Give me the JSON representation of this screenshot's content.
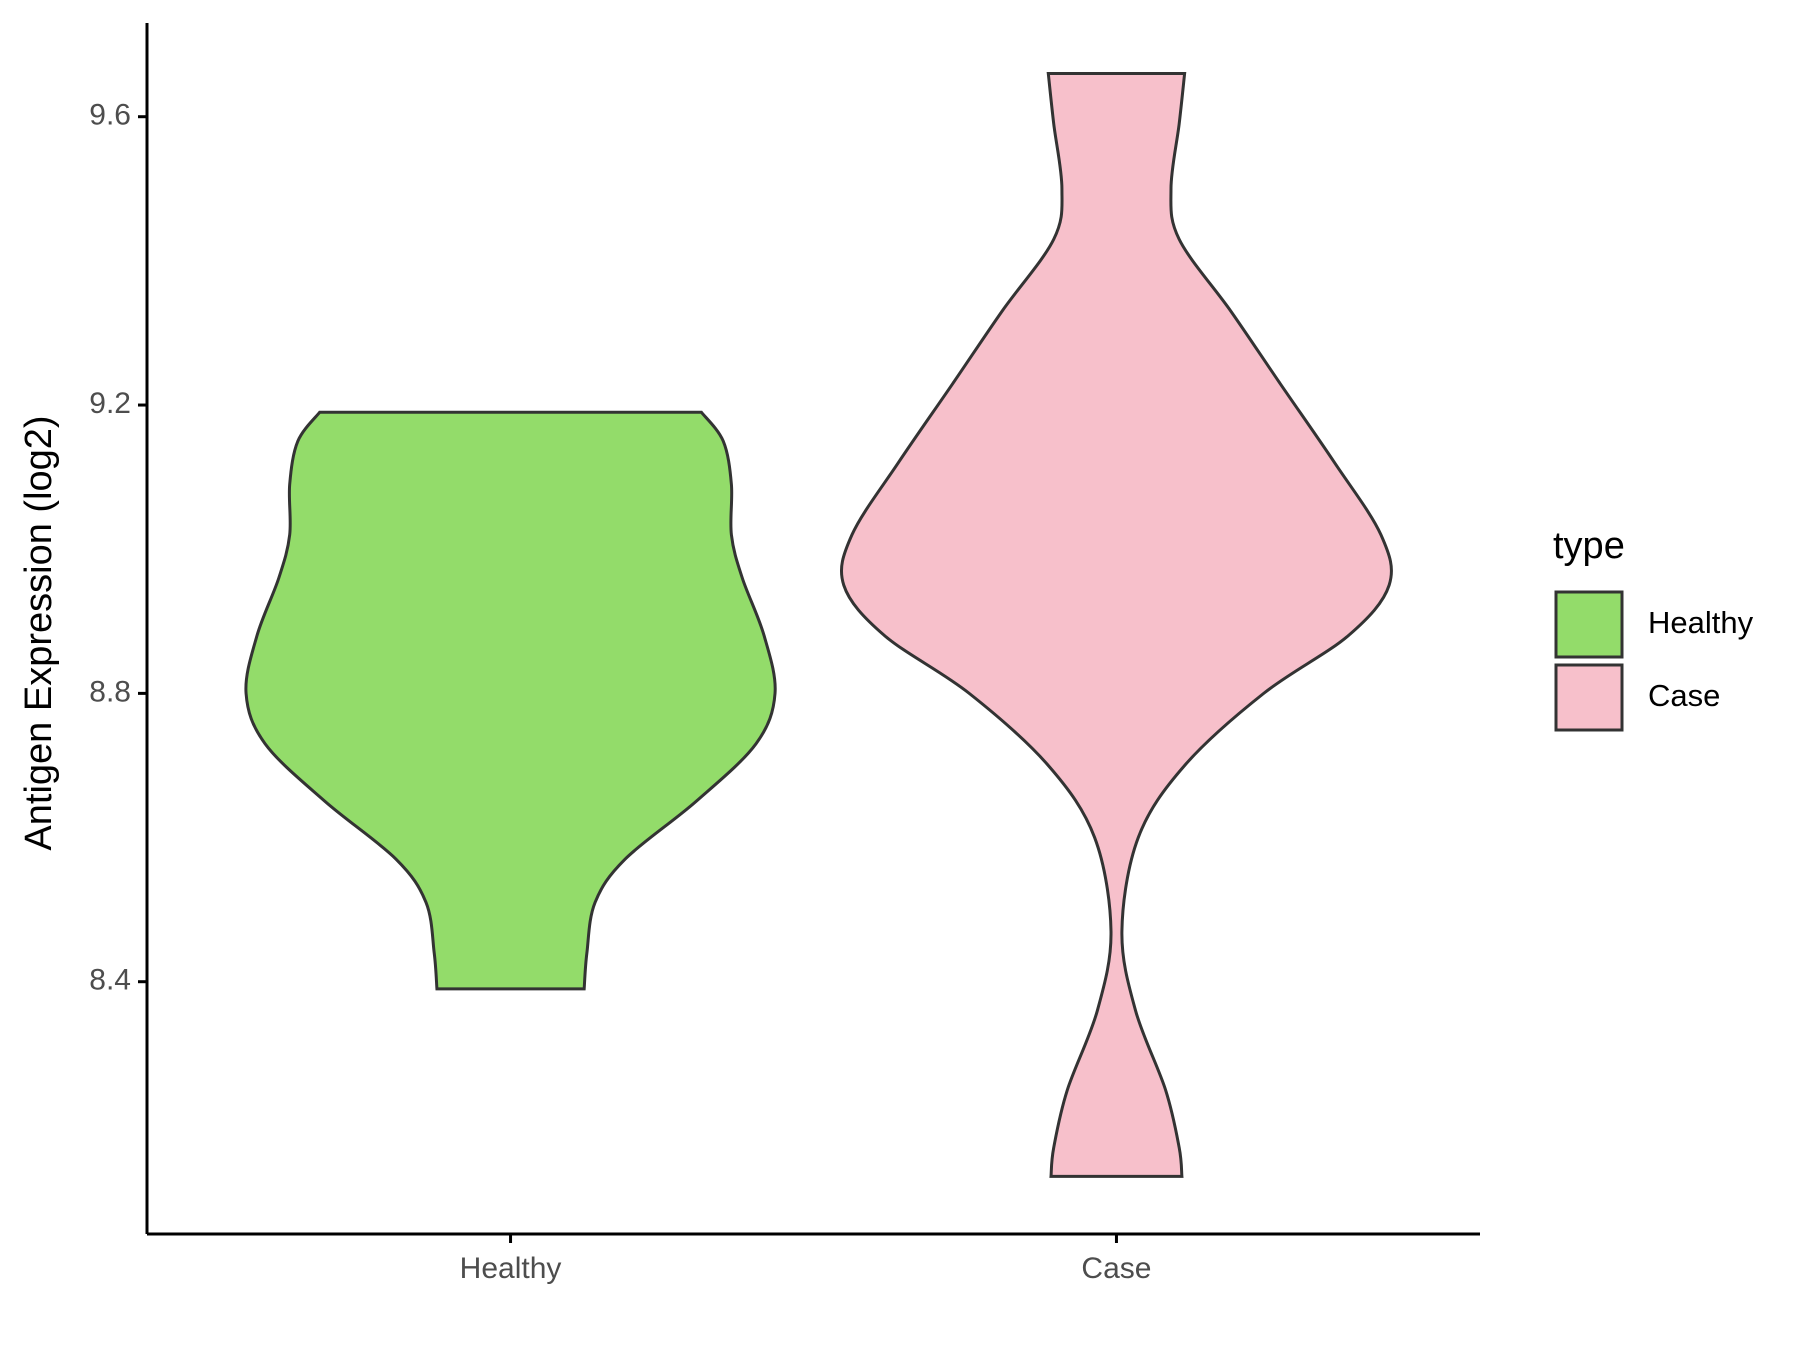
{
  "chart_data": {
    "type": "violin",
    "y_label": "Antigen Expression (log2)",
    "categories": [
      "Healthy",
      "Case"
    ],
    "ylim": [
      8.05,
      9.73
    ],
    "yticks": [
      8.4,
      8.8,
      9.2,
      9.6
    ],
    "legend_title": "type",
    "legend": "right",
    "series": [
      {
        "name": "Healthy",
        "color": "#93dc6a",
        "y": [
          9.19,
          9.15,
          9.09,
          9.02,
          8.96,
          8.88,
          8.8,
          8.73,
          8.65,
          8.57,
          8.51,
          8.44,
          8.39
        ],
        "width": [
          0.7,
          0.78,
          0.81,
          0.81,
          0.85,
          0.93,
          0.97,
          0.9,
          0.68,
          0.42,
          0.31,
          0.28,
          0.27
        ]
      },
      {
        "name": "Case",
        "color": "#f7c0cb",
        "y": [
          9.66,
          9.59,
          9.5,
          9.43,
          9.33,
          9.23,
          9.12,
          9.02,
          8.95,
          8.88,
          8.8,
          8.7,
          8.6,
          8.47,
          8.36,
          8.25,
          8.17,
          8.13
        ],
        "width": [
          0.25,
          0.23,
          0.2,
          0.23,
          0.42,
          0.6,
          0.8,
          0.97,
          1.0,
          0.85,
          0.54,
          0.25,
          0.08,
          0.02,
          0.07,
          0.18,
          0.23,
          0.24
        ]
      }
    ]
  }
}
